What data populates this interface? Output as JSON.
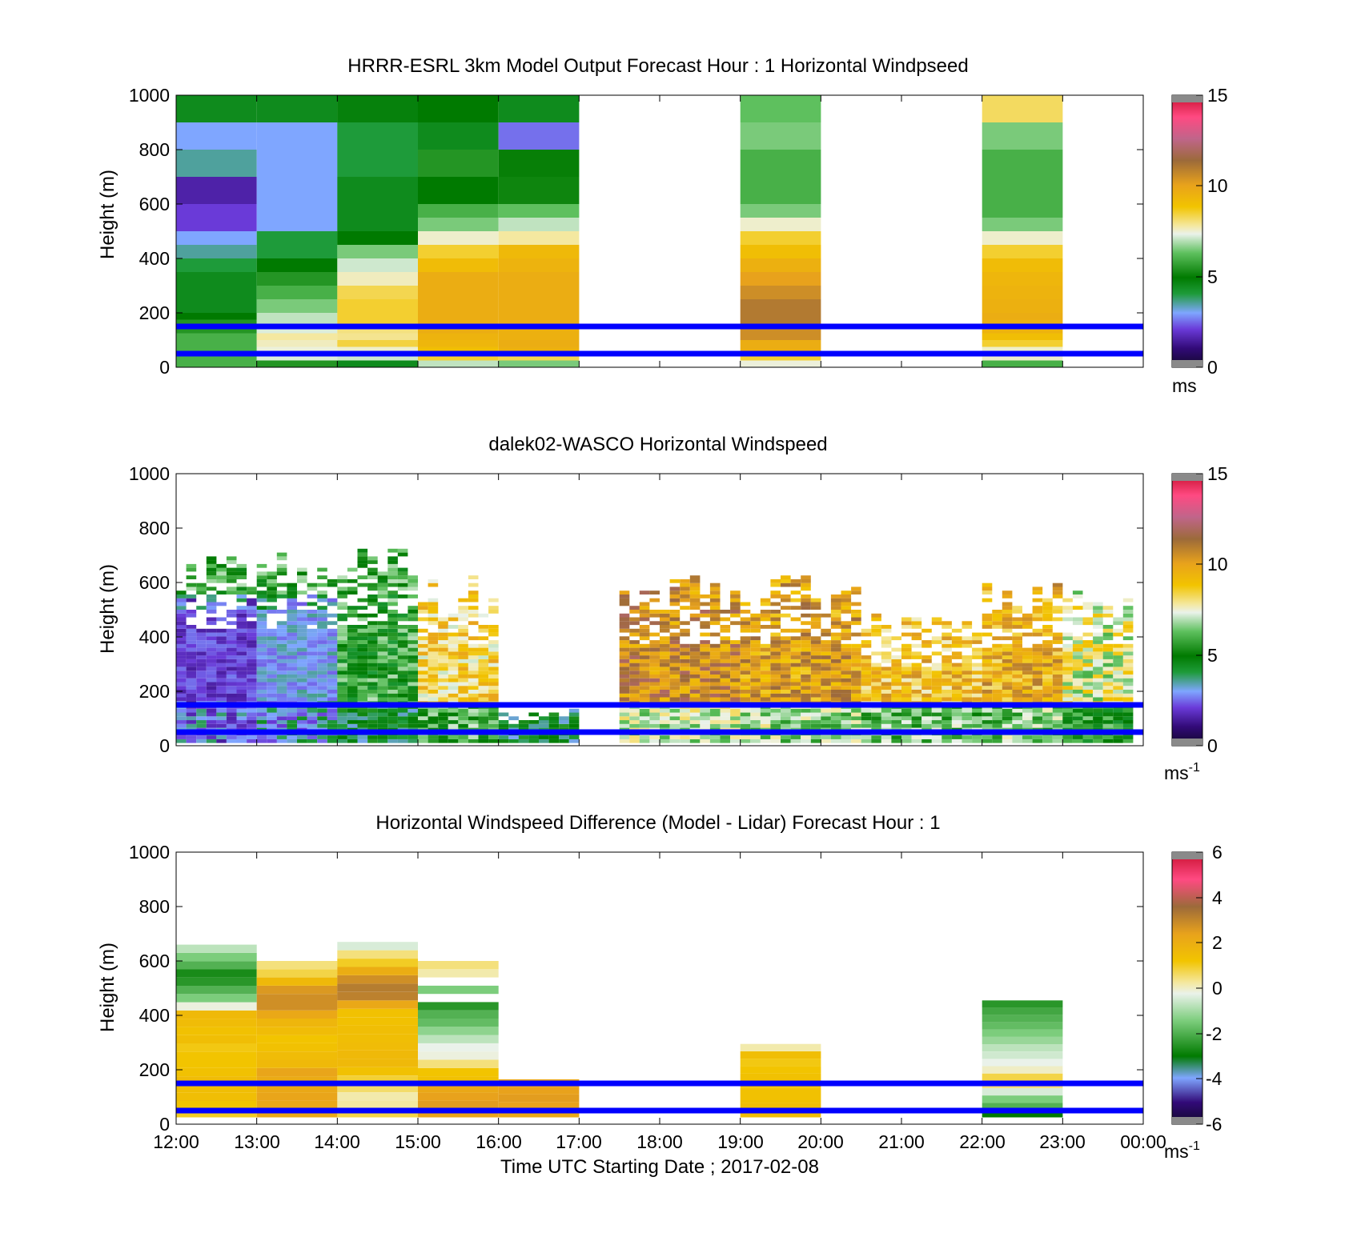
{
  "figure": {
    "xlabel": "Time UTC  Starting Date ; 2017-02-08",
    "time_ticks": [
      "12:00",
      "13:00",
      "14:00",
      "15:00",
      "16:00",
      "17:00",
      "18:00",
      "19:00",
      "20:00",
      "21:00",
      "22:00",
      "23:00",
      "00:00"
    ],
    "reference_lines_m": [
      150,
      50
    ],
    "reference_line_color": "#0000ff"
  },
  "chart_data": [
    {
      "type": "heatmap",
      "title": "HRRR-ESRL 3km Model Output   Forecast Hour : 1 Horizontal Windpseed",
      "ylabel": "Height (m)",
      "ylim": [
        0,
        1000
      ],
      "yticks": [
        "0",
        "200",
        "400",
        "600",
        "800",
        "1000"
      ],
      "colorbar": {
        "range": [
          0,
          15
        ],
        "ticks": [
          "0",
          "5",
          "10",
          "15"
        ],
        "units": "ms"
      },
      "columns_hours_utc": [
        12,
        13,
        14,
        15,
        16,
        19,
        22
      ],
      "heights_m": [
        25,
        50,
        75,
        100,
        125,
        150,
        175,
        200,
        250,
        300,
        350,
        400,
        450,
        500,
        550,
        600,
        700,
        800,
        900,
        1000
      ],
      "values_ms": [
        [
          6,
          6,
          6,
          6,
          6,
          5.5,
          5.5,
          5,
          4.5,
          4.5,
          4.5,
          4,
          3.5,
          3,
          2,
          2,
          1.5,
          3.5,
          3,
          4.5
        ],
        [
          5.5,
          7.2,
          7.4,
          7.6,
          7.8,
          7.2,
          7,
          7,
          6.5,
          6,
          5.5,
          5,
          4,
          4,
          3,
          3,
          3,
          3,
          3,
          4.5
        ],
        [
          4.5,
          7.1,
          7.5,
          8.4,
          7.9,
          8,
          8.5,
          8.5,
          8.5,
          8.3,
          7.6,
          7.1,
          6.5,
          5,
          4.5,
          4.5,
          4.5,
          4,
          4,
          4.8
        ],
        [
          7,
          8.5,
          9,
          9.3,
          9.4,
          9.6,
          9.6,
          9.6,
          9.6,
          9.6,
          9.6,
          9.1,
          8.5,
          7.5,
          6.5,
          6,
          5,
          5.5,
          4.5,
          5
        ],
        [
          6.5,
          8.3,
          9.5,
          9.6,
          9.5,
          9.5,
          9.6,
          9.6,
          9.6,
          9.6,
          9.6,
          9.4,
          9.2,
          7.8,
          7,
          6.3,
          5.2,
          5.1,
          2.5,
          4.5
        ],
        [
          7.4,
          8.5,
          9.6,
          9.6,
          10.5,
          10.5,
          11,
          11,
          11,
          10.5,
          10,
          9.5,
          9,
          8.5,
          7.5,
          6.5,
          6,
          6,
          6.5,
          6.3
        ],
        [
          6,
          7.5,
          7.5,
          8.5,
          9,
          9.4,
          9.5,
          9.6,
          9.5,
          9.4,
          9.3,
          9.1,
          8.5,
          7.5,
          6.5,
          6,
          6,
          6,
          6.5,
          8.2
        ]
      ]
    },
    {
      "type": "heatmap",
      "title": "dalek02-WASCO  Horizontal Windspeed",
      "ylabel": "Height (m)",
      "ylim": [
        0,
        1000
      ],
      "yticks": [
        "0",
        "200",
        "400",
        "600",
        "800",
        "1000"
      ],
      "colorbar": {
        "range": [
          0,
          15
        ],
        "ticks": [
          "0",
          "5",
          "10",
          "15"
        ],
        "units": "ms-1",
        "units_main": "ms",
        "units_sup": "-1"
      },
      "time_regimes": [
        {
          "start_utc": "12:00",
          "end_utc": "13:00",
          "top_m": 700,
          "speed_ms": 2.5
        },
        {
          "start_utc": "13:00",
          "end_utc": "14:00",
          "top_m": 700,
          "speed_ms": 3.5
        },
        {
          "start_utc": "14:00",
          "end_utc": "15:00",
          "top_m": 720,
          "speed_ms": 5.5
        },
        {
          "start_utc": "15:00",
          "end_utc": "16:00",
          "top_m": 600,
          "speed_ms": 8.5
        },
        {
          "start_utc": "16:00",
          "end_utc": "17:00",
          "top_m": 120,
          "speed_ms": 5.5
        },
        {
          "start_utc": "17:30",
          "end_utc": "19:00",
          "top_m": 600,
          "speed_ms": 10.5
        },
        {
          "start_utc": "19:00",
          "end_utc": "20:30",
          "top_m": 600,
          "speed_ms": 10
        },
        {
          "start_utc": "20:30",
          "end_utc": "22:00",
          "top_m": 480,
          "speed_ms": 9
        },
        {
          "start_utc": "22:00",
          "end_utc": "23:00",
          "top_m": 580,
          "speed_ms": 9.5
        },
        {
          "start_utc": "23:00",
          "end_utc": "23:50",
          "top_m": 580,
          "speed_ms": 7.5
        }
      ]
    },
    {
      "type": "heatmap",
      "title": "Horizontal Windspeed Difference (Model - Lidar) Forecast Hour : 1",
      "ylabel": "Height (m)",
      "ylim": [
        0,
        1000
      ],
      "yticks": [
        "0",
        "200",
        "400",
        "600",
        "800",
        "1000"
      ],
      "colorbar": {
        "range": [
          -6,
          6
        ],
        "ticks": [
          "-6",
          "-4",
          "-2",
          "0",
          "2",
          "4",
          "6"
        ],
        "units": "ms-1",
        "units_main": "ms",
        "units_sup": "-1"
      },
      "columns": [
        {
          "start_hour_utc": 12,
          "top_m": 660,
          "values_ms": [
            1,
            1.2,
            1.4,
            1.4,
            1.5,
            1.3,
            1.2,
            1.2,
            1.1,
            1.4,
            1.3,
            1.5,
            1.6,
            -0.2,
            -1.5,
            -2,
            -2.5,
            -2.7,
            -2,
            -1.5,
            -0.8
          ]
        },
        {
          "start_hour_utc": 13,
          "top_m": 600,
          "values_ms": [
            2.2,
            2.2,
            2.3,
            2.2,
            2.1,
            2.3,
            1.6,
            1.5,
            1.3,
            1.2,
            1.5,
            1.7,
            2.2,
            2.8,
            2.8,
            2.6,
            1.6,
            0.8,
            0.5
          ]
        },
        {
          "start_hour_utc": 14,
          "top_m": 670,
          "values_ms": [
            0.8,
            0.3,
            0.2,
            0.6,
            0.9,
            1.3,
            1.6,
            1.6,
            1.5,
            1.4,
            1.4,
            1.3,
            1.3,
            2.2,
            3.1,
            3.2,
            2.8,
            2,
            1,
            0.5,
            -0.5
          ]
        },
        {
          "start_hour_utc": 15,
          "top_m": 600,
          "values_ms": [
            2.3,
            2.5,
            2.4,
            2.2,
            1.3,
            1.2,
            0.5,
            -0.2,
            -0.3,
            -0.8,
            -1.3,
            -1.8,
            -2,
            -2.5,
            null,
            -1.5,
            null,
            0.2,
            0.5
          ]
        },
        {
          "start_hour_utc": 16,
          "top_m": 165,
          "values_ms": [
            2.2,
            2.4,
            2.5,
            2.4,
            2.3
          ]
        },
        {
          "start_hour_utc": 19,
          "top_m": 295,
          "values_ms": [
            1.5,
            1.4,
            1.3,
            1.3,
            1.2,
            1.3,
            1.2,
            1.1,
            1.4,
            0.2
          ]
        },
        {
          "start_hour_utc": 22,
          "top_m": 455,
          "values_ms": [
            -3,
            -2,
            -1.5,
            -0.5,
            0.5,
            0.8,
            0,
            -0.3,
            -0.6,
            -0.8,
            -1.2,
            -1.5,
            -1.8,
            -2,
            -2.2,
            -2.5
          ]
        }
      ]
    }
  ]
}
